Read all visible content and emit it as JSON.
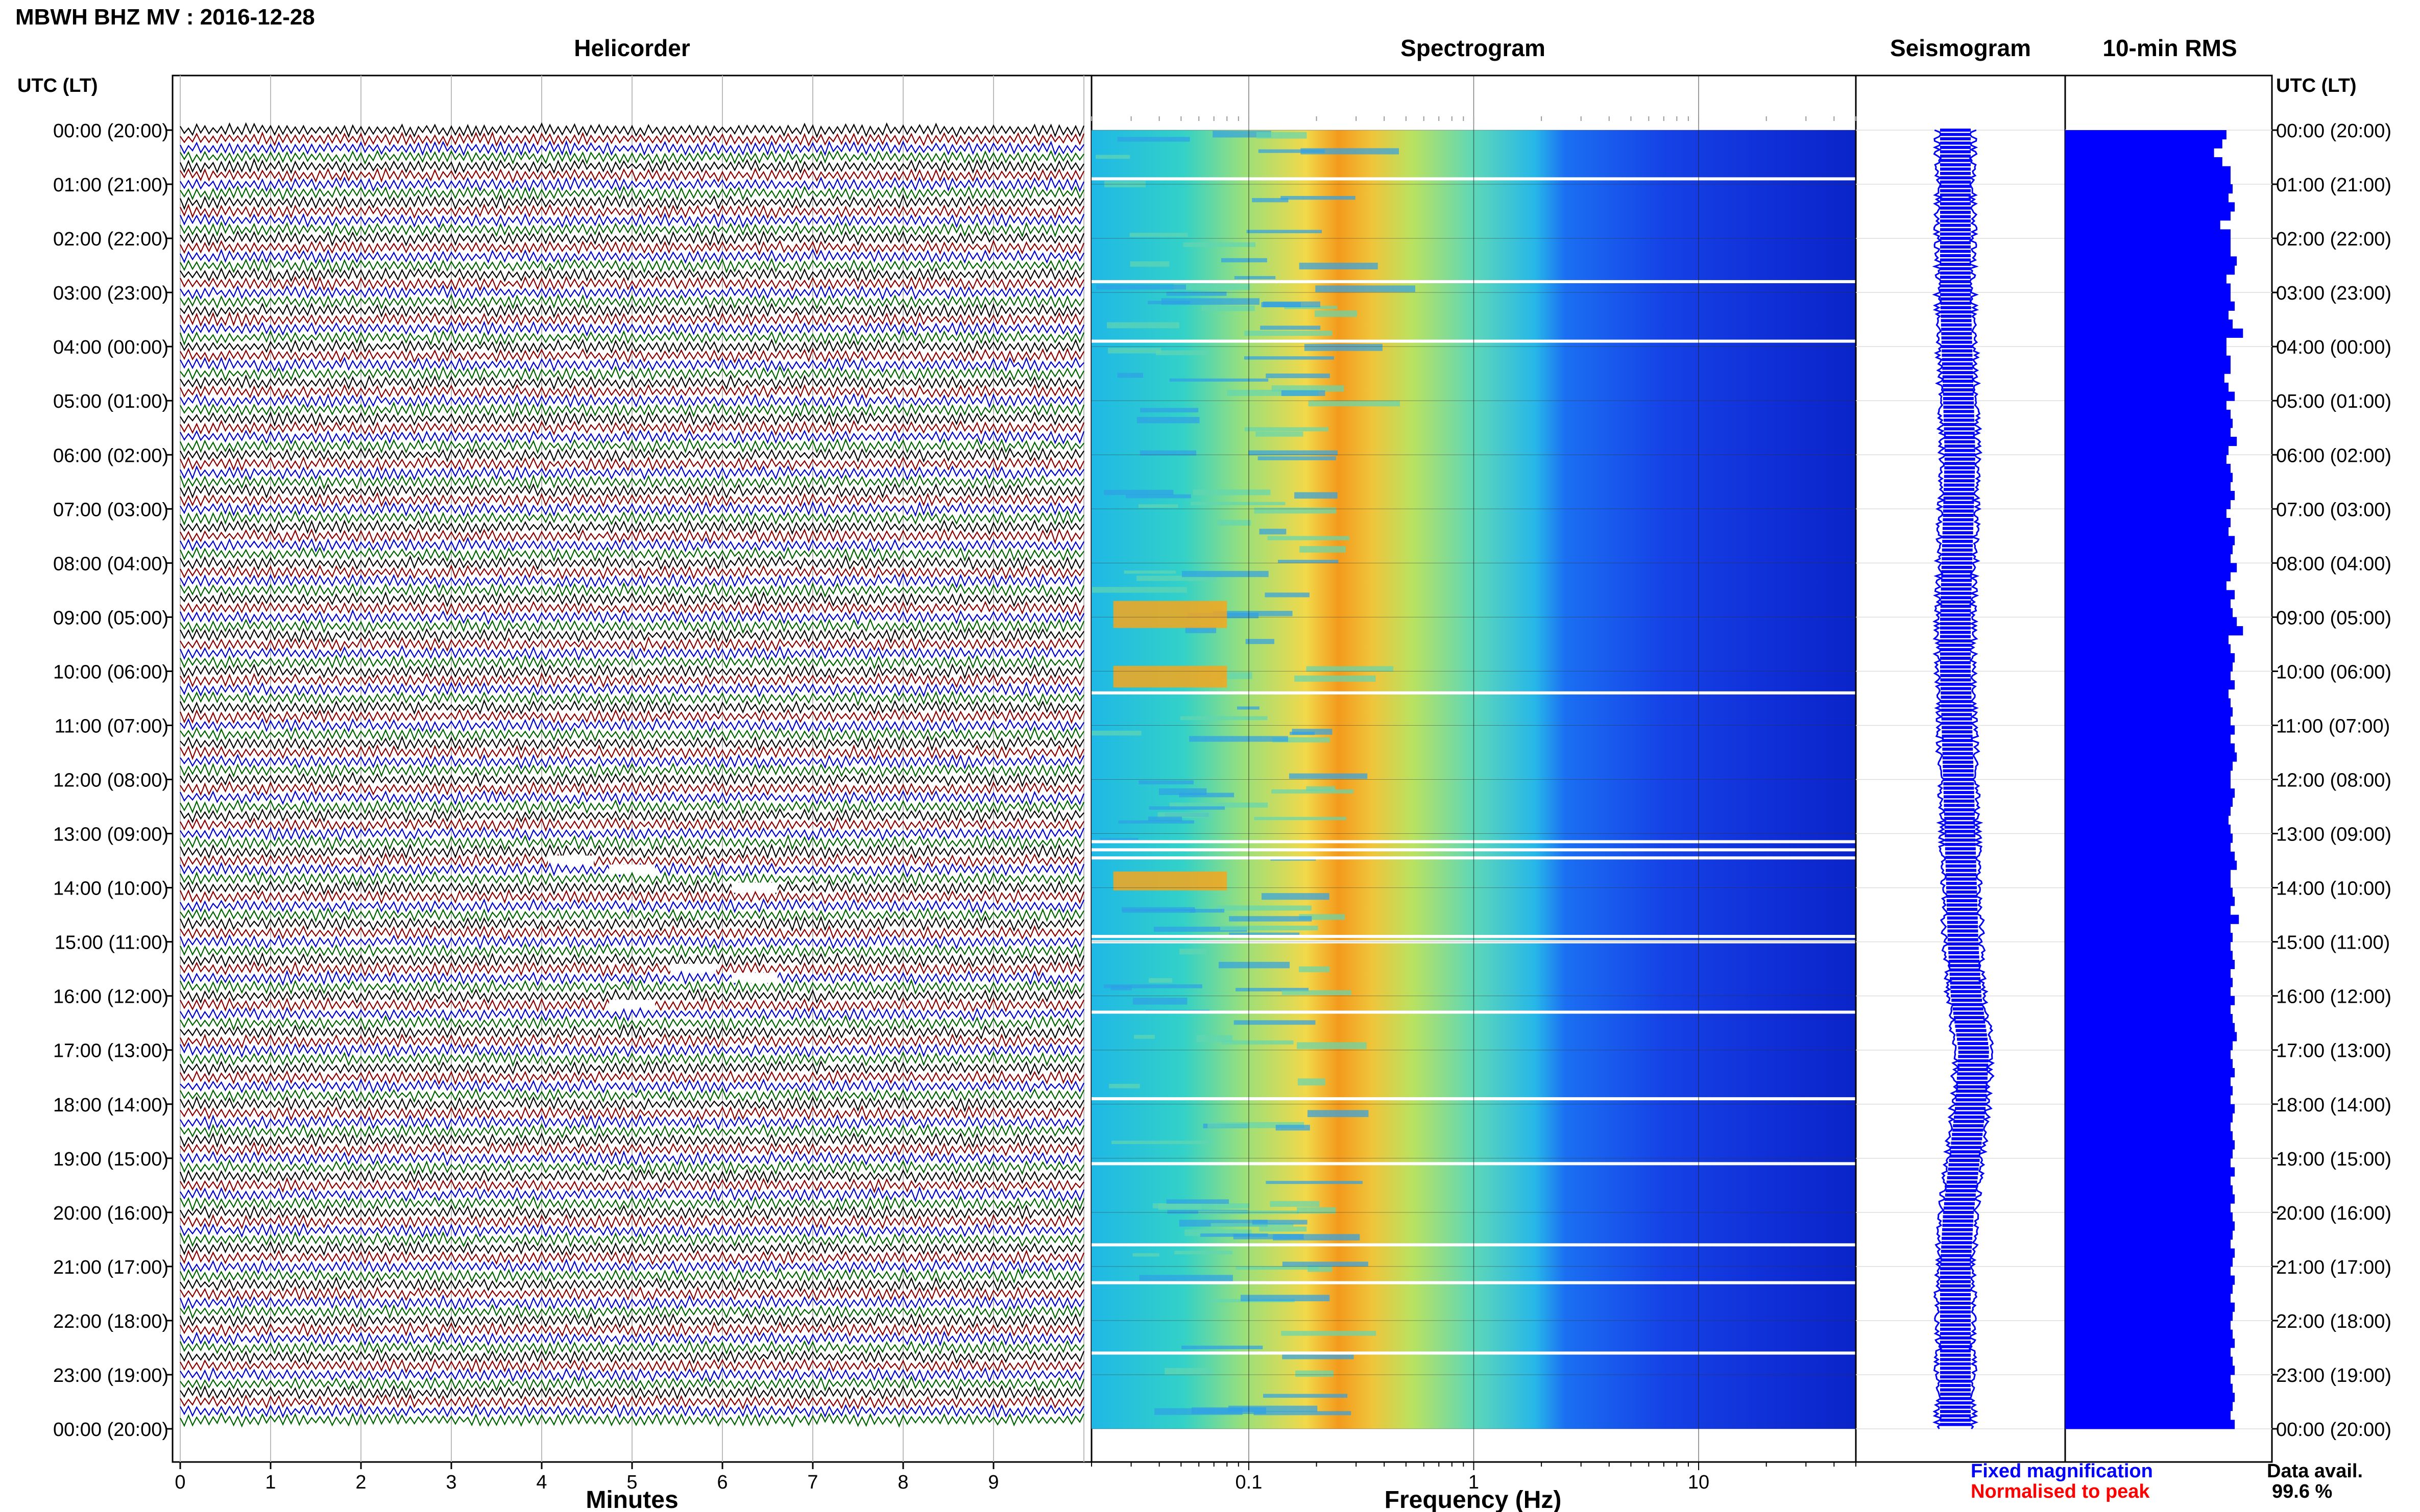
{
  "figure": {
    "station_title": "MBWH BHZ MV : 2016-12-28",
    "panel_titles": {
      "helicorder": "Helicorder",
      "spectrogram": "Spectrogram",
      "seismogram": "Seismogram",
      "rms": "10-min RMS"
    },
    "time_header_left": "UTC (LT)",
    "time_header_right": "UTC (LT)",
    "footer": {
      "fixed_magnification": "Fixed magnification",
      "normalised_to_peak": "Normalised to peak",
      "data_avail_label": "Data avail.",
      "data_avail_value": "99.6 %"
    },
    "colors": {
      "helicorder_traces": [
        "#000000",
        "#8b0000",
        "#0000cd",
        "#006400"
      ],
      "fixed_magnification": "#0000ff",
      "normalised_to_peak": "#ff0000",
      "rms_bar": "#0000ff",
      "seismogram": "#0000ff"
    }
  },
  "chart_data": [
    {
      "type": "line",
      "panel": "helicorder",
      "xlabel": "Minutes",
      "ylabel": "",
      "xlim": [
        0,
        10
      ],
      "x_ticks": [
        "0",
        "1",
        "2",
        "3",
        "4",
        "5",
        "6",
        "7",
        "8",
        "9"
      ],
      "rows_per_hour": 6,
      "hours": 24,
      "y_tick_labels": [
        "00:00 (20:00)",
        "01:00 (21:00)",
        "02:00 (22:00)",
        "03:00 (23:00)",
        "04:00 (00:00)",
        "05:00 (01:00)",
        "06:00 (02:00)",
        "07:00 (03:00)",
        "08:00 (04:00)",
        "09:00 (05:00)",
        "10:00 (06:00)",
        "11:00 (07:00)",
        "12:00 (08:00)",
        "13:00 (09:00)",
        "14:00 (10:00)",
        "15:00 (11:00)",
        "16:00 (12:00)",
        "17:00 (13:00)",
        "18:00 (14:00)",
        "19:00 (15:00)",
        "20:00 (16:00)",
        "21:00 (17:00)",
        "22:00 (18:00)",
        "23:00 (19:00)",
        "00:00 (20:00)"
      ]
    },
    {
      "type": "heatmap",
      "panel": "spectrogram",
      "xlabel": "Frequency (Hz)",
      "ylabel": "",
      "x_scale": "log",
      "xlim": [
        0.02,
        50
      ],
      "x_ticks": [
        0.1,
        1,
        10
      ],
      "x_tick_labels": [
        "0.1",
        "1",
        "10"
      ],
      "dominant_band_hz": [
        0.18,
        0.35
      ],
      "gap_hours": [
        0.9,
        2.8,
        3.9,
        10.4,
        13.15,
        13.3,
        13.45,
        14.9,
        15.0,
        16.3,
        17.9,
        19.1,
        20.6,
        21.3,
        22.6
      ]
    },
    {
      "type": "line",
      "panel": "seismogram",
      "xlabel": "",
      "ylabel": "",
      "baseline_offset_by_hour": [
        0,
        0,
        0,
        0,
        0.05,
        0.1,
        0.15,
        0.1,
        0.05,
        0,
        0,
        0.05,
        0.1,
        0.15,
        0.2,
        0.25,
        0.35,
        0.6,
        0.5,
        0.3,
        0.1,
        0,
        0,
        0,
        0
      ]
    },
    {
      "type": "bar",
      "panel": "rms",
      "xlabel": "",
      "ylabel": "",
      "orientation": "horizontal",
      "values": [
        0.78,
        0.76,
        0.72,
        0.76,
        0.8,
        0.8,
        0.81,
        0.79,
        0.82,
        0.8,
        0.75,
        0.8,
        0.8,
        0.8,
        0.83,
        0.82,
        0.78,
        0.8,
        0.8,
        0.82,
        0.79,
        0.81,
        0.86,
        0.78,
        0.78,
        0.8,
        0.8,
        0.77,
        0.79,
        0.82,
        0.78,
        0.8,
        0.81,
        0.8,
        0.83,
        0.79,
        0.78,
        0.8,
        0.81,
        0.8,
        0.82,
        0.8,
        0.78,
        0.8,
        0.79,
        0.82,
        0.81,
        0.8,
        0.83,
        0.8,
        0.78,
        0.82,
        0.8,
        0.81,
        0.83,
        0.86,
        0.79,
        0.8,
        0.82,
        0.81,
        0.8,
        0.82,
        0.79,
        0.8,
        0.81,
        0.8,
        0.82,
        0.8,
        0.82,
        0.83,
        0.81,
        0.8,
        0.8,
        0.82,
        0.81,
        0.8,
        0.79,
        0.8,
        0.81,
        0.8,
        0.82,
        0.83,
        0.8,
        0.8,
        0.81,
        0.82,
        0.8,
        0.84,
        0.8,
        0.81,
        0.8,
        0.81,
        0.82,
        0.8,
        0.81,
        0.8,
        0.82,
        0.8,
        0.81,
        0.82,
        0.83,
        0.81,
        0.8,
        0.81,
        0.82,
        0.8,
        0.81,
        0.8,
        0.82,
        0.81,
        0.8,
        0.81,
        0.82,
        0.81,
        0.8,
        0.82,
        0.8,
        0.81,
        0.82,
        0.8,
        0.81,
        0.82,
        0.81,
        0.8,
        0.82,
        0.81,
        0.8,
        0.82,
        0.81,
        0.8,
        0.82,
        0.81,
        0.8,
        0.81,
        0.82,
        0.8,
        0.81,
        0.82,
        0.8,
        0.81,
        0.82,
        0.81,
        0.8,
        0.82
      ]
    }
  ]
}
